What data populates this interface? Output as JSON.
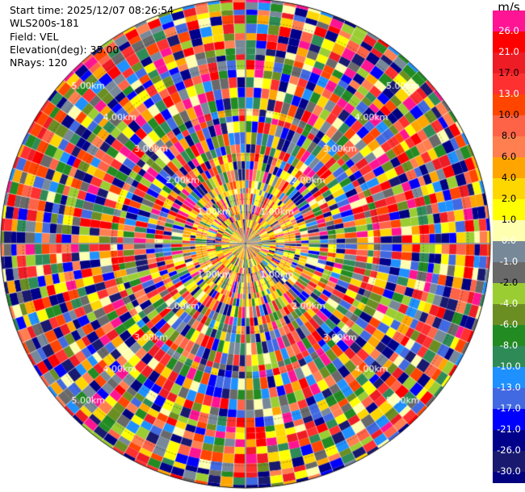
{
  "info": {
    "start_time": "Start time: 2025/12/07 08:26:54",
    "instrument": "WLS200s-181",
    "field": "Field: VEL",
    "elevation": "Elevation(deg): 35.00",
    "nrays": "NRays: 120"
  },
  "colorbar": {
    "unit": "m/s",
    "ticks": [
      "26.0",
      "21.0",
      "17.0",
      "13.0",
      "10.0",
      "8.0",
      "6.0",
      "4.0",
      "2.0",
      "1.0",
      "0.0",
      "-1.0",
      "-2.0",
      "-4.0",
      "-6.0",
      "-8.0",
      "-10.0",
      "-13.0",
      "-17.0",
      "-21.0",
      "-26.0",
      "-30.0"
    ],
    "colors": [
      "#ff1493",
      "#ff0000",
      "#ee1c25",
      "#ff3030",
      "#ff4500",
      "#ff6347",
      "#ff7f50",
      "#ffa500",
      "#ffd700",
      "#ffff00",
      "#ffffb0",
      "#778899",
      "#696969",
      "#9acd32",
      "#6b8e23",
      "#228b22",
      "#2e8b57",
      "#1e90ff",
      "#4169e1",
      "#0000ff",
      "#00008b",
      "#191970",
      "#000080"
    ]
  },
  "chart_data": {
    "type": "ppi",
    "field": "VEL",
    "elevation_deg": 35.0,
    "n_rays": 120,
    "range_rings_km": [
      1,
      2,
      3,
      4,
      5
    ],
    "range_labels": [
      "1.00km",
      "2.00km",
      "3.00km",
      "4.00km",
      "5.00km"
    ],
    "max_range_km": 5.5,
    "colorbar_min": -30.0,
    "colorbar_max": 26.0
  }
}
